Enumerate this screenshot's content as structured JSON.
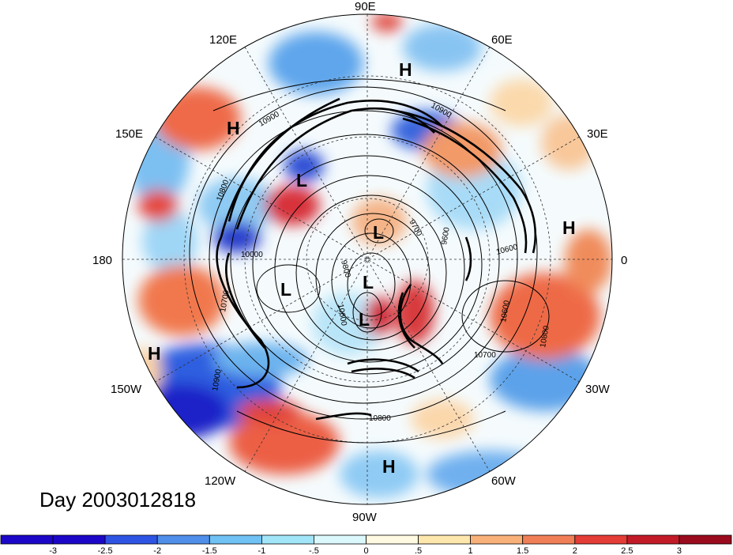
{
  "map": {
    "title": "Day 2003012818",
    "longitude_labels": [
      {
        "text": "90E",
        "pos": "top"
      },
      {
        "text": "60E",
        "pos": "top-right-upper"
      },
      {
        "text": "30E",
        "pos": "right-upper"
      },
      {
        "text": "0",
        "pos": "right"
      },
      {
        "text": "30W",
        "pos": "right-lower"
      },
      {
        "text": "60W",
        "pos": "bottom-right"
      },
      {
        "text": "90W",
        "pos": "bottom"
      },
      {
        "text": "120W",
        "pos": "bottom-left"
      },
      {
        "text": "150W",
        "pos": "left-lower"
      },
      {
        "text": "180",
        "pos": "left"
      },
      {
        "text": "150E",
        "pos": "left-upper"
      },
      {
        "text": "120E",
        "pos": "top-left"
      }
    ],
    "pressure_centers": [
      "H",
      "H",
      "H",
      "H",
      "H",
      "L",
      "L",
      "L",
      "L",
      "L"
    ],
    "contour_labels": [
      "10900",
      "10900",
      "10800",
      "10700",
      "10600",
      "10600",
      "10000",
      "9800",
      "9700",
      "9600",
      "10900",
      "10800",
      "10600",
      "10700",
      "10800"
    ],
    "colors": {
      "strong_negative": "#2a2ad8",
      "negative": "#5aa6ee",
      "weak_negative": "#cdf3f7",
      "neutral": "#ffffff",
      "weak_positive": "#fbe6b4",
      "positive": "#f4883c",
      "strong_positive": "#b01423"
    }
  },
  "colorbar": {
    "ticks": [
      "-3",
      "-2.5",
      "-2",
      "-1.5",
      "-1",
      "-.5",
      "0",
      ".5",
      "1",
      "1.5",
      "2",
      "2.5",
      "3"
    ],
    "colors": [
      "#1c07c9",
      "#2e54e4",
      "#4f8fea",
      "#70c2f4",
      "#a2e5f9",
      "#dbf8fc",
      "#fffae1",
      "#fde7ad",
      "#f9b17a",
      "#f07f57",
      "#e43c37",
      "#c31a27",
      "#9a0b1e"
    ]
  }
}
